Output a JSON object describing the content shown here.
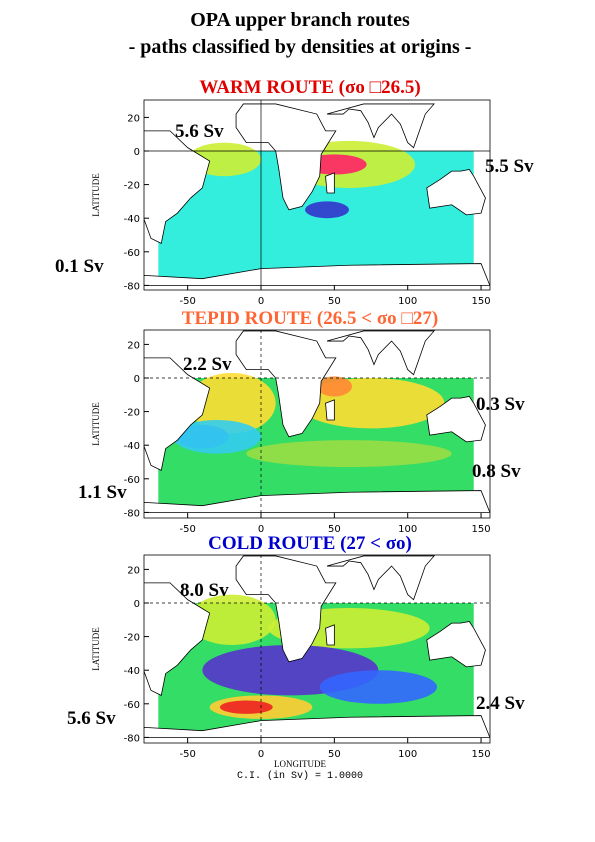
{
  "title": [
    "OPA upper branch routes",
    "- paths classified by densities at origins -"
  ],
  "y_axis_label": "LATITUDE",
  "x_axis_label": "LONGITUDE",
  "xticks": [
    -50,
    0,
    50,
    100,
    150
  ],
  "yticks": [
    20,
    0,
    -20,
    -40,
    -60,
    -80
  ],
  "footnote": "C.I. (in Sv) =   1.0000",
  "panels": [
    {
      "title": "WARM ROUTE (σo □26.5)",
      "title_color": "#e00000",
      "labels": [
        "5.6 Sv",
        "5.5 Sv",
        "0.1 Sv"
      ]
    },
    {
      "title": "TEPID ROUTE (26.5 < σo □27)",
      "title_color": "#ff6633",
      "labels": [
        "2.2 Sv",
        "0.3 Sv",
        "0.8 Sv",
        "1.1 Sv"
      ]
    },
    {
      "title": "COLD ROUTE (27 < σo)",
      "title_color": "#0000cc",
      "labels": [
        "8.0 Sv",
        "2.4 Sv",
        "5.6 Sv"
      ]
    }
  ]
}
